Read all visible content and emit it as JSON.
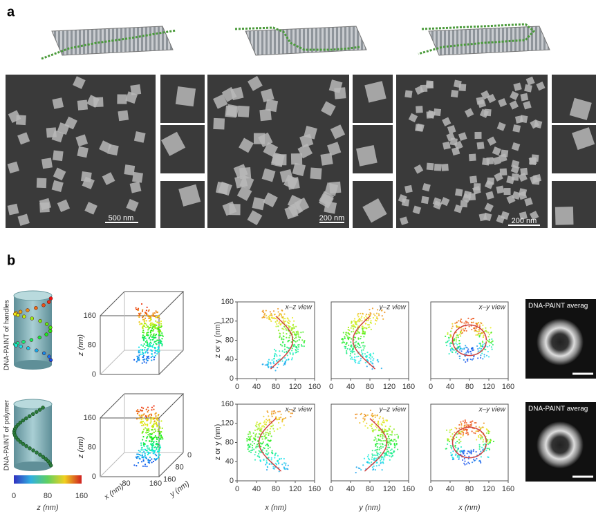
{
  "panel_a": {
    "label": "a",
    "scale_bars": [
      "500 nm",
      "200 nm",
      "200 nm"
    ]
  },
  "panel_b": {
    "label": "b",
    "row_labels": [
      "DNA-PAINT of handles",
      "DNA-PAINT of polymer"
    ],
    "colorbar": {
      "ticks": [
        0,
        80,
        160
      ],
      "label": "z (nm)"
    },
    "plot_3d": {
      "z_ticks": [
        0,
        80,
        160
      ],
      "z_label": "z (nm)",
      "x_ticks": [
        80,
        160
      ],
      "x_label": "x (nm)",
      "y_ticks": [
        0,
        80,
        160
      ],
      "y_label": "y (nm)"
    },
    "plots_2d": {
      "views": [
        "x–z view",
        "y–z view",
        "x–y view"
      ],
      "x_labels": [
        "x (nm)",
        "y (nm)",
        "x (nm)"
      ],
      "y_label": "z or y (nm)",
      "ticks": [
        0,
        40,
        80,
        120,
        160
      ]
    },
    "average_label": "DNA-PAINT averag"
  }
}
